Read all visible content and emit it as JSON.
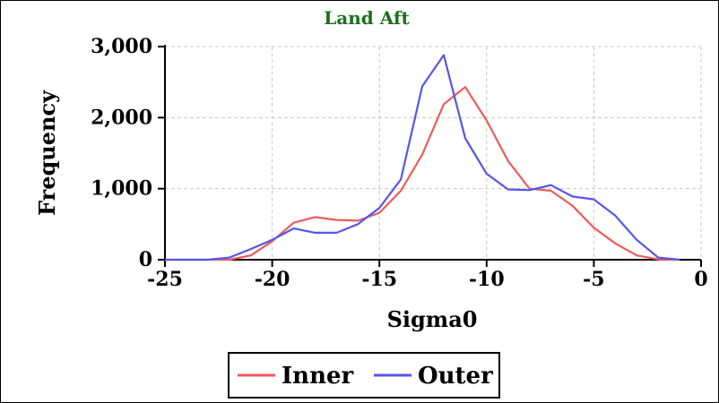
{
  "chart_data": {
    "type": "line",
    "title": "Land Aft",
    "title_color": "#1e6e1e",
    "xlabel": "Sigma0",
    "ylabel": "Frequency",
    "xlim": [
      -25,
      0
    ],
    "ylim": [
      0,
      3000
    ],
    "x_ticks": [
      -25,
      -20,
      -15,
      -10,
      -5,
      0
    ],
    "x_tick_labels": [
      "-25",
      "-20",
      "-15",
      "-10",
      "-5",
      "0"
    ],
    "y_ticks": [
      0,
      1000,
      2000,
      3000
    ],
    "y_tick_labels": [
      "0",
      "1,000",
      "2,000",
      "3,000"
    ],
    "grid": true,
    "legend_position": "bottom",
    "series": [
      {
        "name": "Inner",
        "color": "#ef5b5b",
        "x": [
          -25,
          -24,
          -23,
          -22,
          -21,
          -20,
          -19,
          -18,
          -17,
          -16,
          -15,
          -14,
          -13,
          -12,
          -11,
          -10,
          -9,
          -8,
          -7,
          -6,
          -5,
          -4,
          -3,
          -2,
          -1
        ],
        "y": [
          0,
          0,
          0,
          0,
          60,
          260,
          520,
          600,
          560,
          550,
          660,
          970,
          1480,
          2190,
          2430,
          1960,
          1390,
          1000,
          970,
          760,
          450,
          230,
          60,
          5,
          0
        ]
      },
      {
        "name": "Outer",
        "color": "#5555f0",
        "x": [
          -25,
          -24,
          -23,
          -22,
          -21,
          -20,
          -19,
          -18,
          -17,
          -16,
          -15,
          -14,
          -13,
          -12,
          -11,
          -10,
          -9,
          -8,
          -7,
          -6,
          -5,
          -4,
          -3,
          -2,
          -1
        ],
        "y": [
          0,
          0,
          0,
          30,
          150,
          280,
          440,
          380,
          380,
          500,
          730,
          1130,
          2440,
          2880,
          1710,
          1210,
          990,
          980,
          1050,
          890,
          850,
          620,
          280,
          30,
          0
        ]
      }
    ]
  }
}
